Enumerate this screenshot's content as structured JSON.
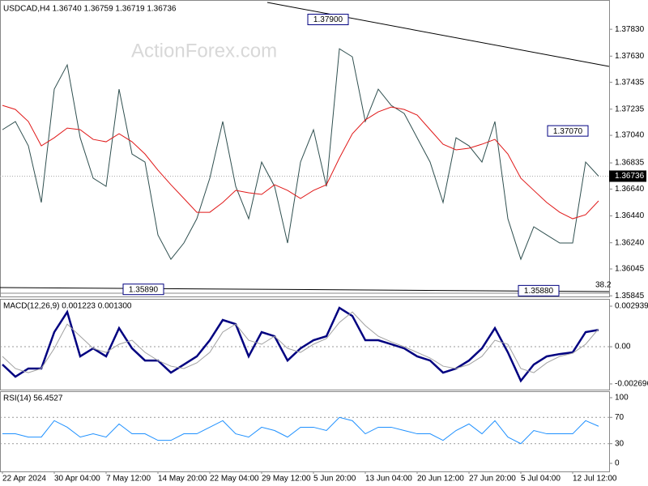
{
  "watermark": "ActionForex.com",
  "chart_data": [
    {
      "type": "line",
      "title": "USDCAD,H4 1.36740 1.36759 1.36719 1.36736",
      "ylim": [
        1.3584,
        1.3803
      ],
      "yticks": [
        {
          "value": 1.3783,
          "label": "1.37830"
        },
        {
          "value": 1.3763,
          "label": "1.37630"
        },
        1.37435,
        1.37235,
        {
          "value": 1.3704,
          "label": "1.37040"
        },
        1.36835,
        {
          "value": 1.3664,
          "label": "1.36640"
        },
        {
          "value": 1.3644,
          "label": "1.36440"
        },
        {
          "value": 1.3624,
          "label": "1.36240"
        },
        1.36045,
        1.35845
      ],
      "last_price": 1.36736,
      "fib_label": 38.2,
      "annotations": [
        {
          "value": 1.379,
          "label": "1.37900"
        },
        {
          "value": 1.3589,
          "label": "1.35890"
        },
        {
          "value": 1.3588,
          "label": "1.35880"
        },
        {
          "value": 1.3707,
          "label": "1.37070"
        }
      ],
      "series": [
        {
          "color": "#2f4f4f",
          "values": [
            1.37082,
            1.37143,
            1.36962,
            1.3654,
            1.37384,
            1.37565,
            1.37022,
            1.36721,
            1.3666,
            1.37384,
            1.36901,
            1.36841,
            1.36298,
            1.36117,
            1.36238,
            1.36419,
            1.36721,
            1.37143,
            1.3666,
            1.36419,
            1.36841,
            1.3666,
            1.36238,
            1.36841,
            1.37082,
            1.3666,
            1.37685,
            1.37625,
            1.37143,
            1.37384,
            1.37263,
            1.37203,
            1.37022,
            1.36841,
            1.3654,
            1.37022,
            1.36962,
            1.36841,
            1.37143,
            1.36419,
            1.36117,
            1.36359,
            1.36298,
            1.36238,
            1.36238,
            1.36841,
            1.36736
          ]
        },
        {
          "color": "#e01818",
          "values": [
            1.37263,
            1.37233,
            1.37143,
            1.36962,
            1.37022,
            1.37094,
            1.37082,
            1.3701,
            1.36992,
            1.37052,
            1.36992,
            1.36901,
            1.36781,
            1.36672,
            1.3657,
            1.36467,
            1.36467,
            1.3654,
            1.3663,
            1.36612,
            1.366,
            1.36672,
            1.3663,
            1.3657,
            1.3663,
            1.36672,
            1.36871,
            1.37052,
            1.37155,
            1.37215,
            1.37251,
            1.37233,
            1.37191,
            1.37082,
            1.36974,
            1.36932,
            1.36944,
            1.36974,
            1.3701,
            1.36901,
            1.36721,
            1.3663,
            1.3654,
            1.36467,
            1.36419,
            1.36449,
            1.36552
          ]
        }
      ]
    },
    {
      "type": "line",
      "title": "MACD(12,26,9) 0.001223 0.001300",
      "ylim": [
        -0.00311,
        0.00341
      ],
      "yticks": [
        0.002939,
        {
          "value": 0,
          "label": "0.00"
        },
        -0.002696
      ],
      "levels": [
        0
      ],
      "series": [
        {
          "color": "#000080",
          "values": [
            -0.00129,
            -0.00217,
            -0.00158,
            -0.00158,
            0.00106,
            0.00252,
            -0.0007,
            -0.00012,
            -0.0007,
            0.00135,
            -0.00012,
            -0.001,
            -0.001,
            -0.00188,
            -0.00129,
            -0.0007,
            0.00047,
            0.00194,
            0.00164,
            -0.0007,
            0.00106,
            0.00076,
            -0.001,
            -0.00012,
            0.00047,
            0.00076,
            0.00282,
            0.00223,
            0.00047,
            0.00047,
            0.00018,
            -0.00012,
            -0.0007,
            -0.001,
            -0.00188,
            -0.00158,
            -0.001,
            -0.00012,
            0.00135,
            -0.00041,
            -0.00247,
            -0.00129,
            -0.0007,
            -0.00053,
            -0.00041,
            0.00106,
            0.001223
          ]
        },
        {
          "color": "#a0a0a0",
          "values": [
            -0.0007,
            -0.00158,
            -0.00188,
            -0.00158,
            -0.00012,
            0.00164,
            0.00076,
            -0.00012,
            -0.00041,
            0.00018,
            0.00047,
            -0.00041,
            -0.001,
            -0.00141,
            -0.00158,
            -0.00117,
            -0.00041,
            0.00106,
            0.00164,
            0.00047,
            0.00018,
            0.00076,
            -0.00012,
            -0.00041,
            0.00018,
            0.00059,
            0.00176,
            0.00252,
            0.00153,
            0.00076,
            0.00035,
            0,
            -0.00041,
            -0.00082,
            -0.00141,
            -0.00158,
            -0.00129,
            -0.0007,
            0.00047,
            0.00018,
            -0.00158,
            -0.00188,
            -0.00117,
            -0.0007,
            -0.00047,
            0.00018,
            0.0013
          ]
        }
      ]
    },
    {
      "type": "line",
      "title": "RSI(14) 56.4527",
      "ylim": [
        -12.3,
        108.6
      ],
      "yticks": [
        100,
        70,
        30,
        0
      ],
      "levels": [
        70,
        30
      ],
      "categories": [
        "22 Apr 2024",
        null,
        null,
        null,
        "30 Apr 04:00",
        null,
        null,
        null,
        "7 May 12:00",
        null,
        null,
        null,
        "14 May 20:00",
        null,
        null,
        null,
        "22 May 04:00",
        null,
        null,
        null,
        "29 May 12:00",
        null,
        null,
        null,
        "5 Jun 20:00",
        null,
        null,
        null,
        "13 Jun 04:00",
        null,
        null,
        null,
        "20 Jun 12:00",
        null,
        null,
        null,
        "27 Jun 20:00",
        null,
        null,
        null,
        "5 Jul 04:00",
        null,
        null,
        null,
        "12 Jul 12:00",
        null,
        null
      ],
      "series": [
        {
          "color": "#1e90ff",
          "values": [
            45,
            45,
            40,
            40,
            65,
            55,
            40,
            45,
            40,
            60,
            45,
            45,
            35,
            35,
            45,
            45,
            55,
            65,
            45,
            40,
            55,
            50,
            40,
            55,
            55,
            50,
            70,
            65,
            45,
            55,
            55,
            50,
            45,
            45,
            35,
            50,
            60,
            45,
            65,
            40,
            30,
            50,
            45,
            45,
            45,
            65,
            56.4527
          ]
        }
      ]
    }
  ]
}
